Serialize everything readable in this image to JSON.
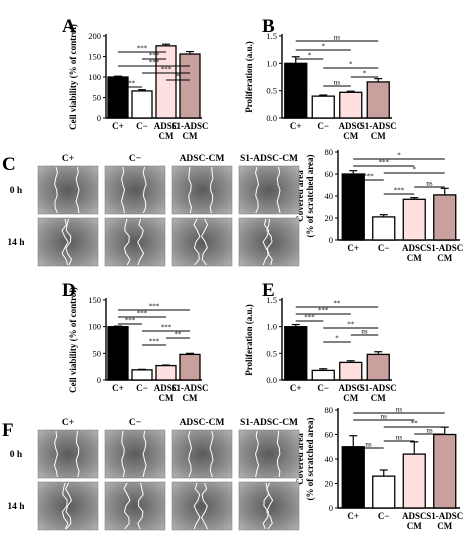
{
  "panel_labels": {
    "A": "A",
    "B": "B",
    "C": "C",
    "D": "D",
    "E": "E",
    "F": "F"
  },
  "scratch_grids": [
    {
      "panel": "C",
      "columns": [
        "C+",
        "C−",
        "ADSC-CM",
        "S1-ADSC-CM"
      ],
      "rows": [
        "0 h",
        "14 h"
      ]
    },
    {
      "panel": "F",
      "columns": [
        "C+",
        "C−",
        "ADSC-CM",
        "S1-ADSC-CM"
      ],
      "rows": [
        "0 h",
        "14 h"
      ]
    }
  ],
  "colors": {
    "C+": "#000000",
    "C-": "#ffffff",
    "ADSC CM": "#ffe0e0",
    "S1-ADSC CM": "#c8a09e"
  },
  "chart_data": [
    {
      "panel": "A",
      "type": "bar",
      "categories": [
        "C+",
        "C−",
        "ADSC CM",
        "S1-ADSC CM"
      ],
      "cat_lines": [
        [
          "C+"
        ],
        [
          "C−"
        ],
        [
          "ADSC",
          "CM"
        ],
        [
          "S1-ADSC",
          "CM"
        ]
      ],
      "values": [
        100,
        66,
        176,
        156
      ],
      "errors": [
        2,
        3,
        4,
        6
      ],
      "ylabel": "Cell viability (% of control)",
      "ylim": [
        0,
        200
      ],
      "yticks": [
        0,
        50,
        100,
        150,
        200
      ],
      "tick_labels": [
        "0",
        "50",
        "100",
        "150",
        "200"
      ],
      "comparisons": [
        {
          "a": 0,
          "b": 1,
          "label": "***"
        },
        {
          "a": 2,
          "b": 3,
          "label": "*"
        },
        {
          "a": 1,
          "b": 3,
          "label": "***"
        },
        {
          "a": 0,
          "b": 3,
          "label": "***"
        },
        {
          "a": 1,
          "b": 2,
          "label": "***"
        },
        {
          "a": 0,
          "b": 2,
          "label": "***"
        }
      ]
    },
    {
      "panel": "B",
      "type": "bar",
      "categories": [
        "C+",
        "C−",
        "ADSC CM",
        "S1-ADSC CM"
      ],
      "cat_lines": [
        [
          "C+"
        ],
        [
          "C−"
        ],
        [
          "ADSC",
          "CM"
        ],
        [
          "S1-ADSC",
          "CM"
        ]
      ],
      "values": [
        1.0,
        0.4,
        0.47,
        0.66
      ],
      "errors": [
        0.12,
        0.02,
        0.02,
        0.06
      ],
      "ylabel": "Proliferation (a.u.)",
      "ylim": [
        0,
        1.5
      ],
      "yticks": [
        0,
        0.5,
        1.0,
        1.5
      ],
      "tick_labels": [
        "0.0",
        "0.5",
        "1.0",
        "1.5"
      ],
      "comparisons": [
        {
          "a": 1,
          "b": 2,
          "label": "ns"
        },
        {
          "a": 2,
          "b": 3,
          "label": "*"
        },
        {
          "a": 1,
          "b": 3,
          "label": "*"
        },
        {
          "a": 0,
          "b": 1,
          "label": "*"
        },
        {
          "a": 0,
          "b": 2,
          "label": "*"
        },
        {
          "a": 0,
          "b": 3,
          "label": "ns"
        }
      ]
    },
    {
      "panel": "C",
      "type": "bar",
      "categories": [
        "C+",
        "C−",
        "ADSC CM",
        "S1-ADSC CM"
      ],
      "cat_lines": [
        [
          "C+"
        ],
        [
          "C−"
        ],
        [
          "ADSC",
          "CM"
        ],
        [
          "S1-ADSC",
          "CM"
        ]
      ],
      "values": [
        60,
        21,
        37,
        41
      ],
      "errors": [
        3,
        2,
        1.5,
        6
      ],
      "ylabel": "Covered area",
      "ylabel2": "(% of scratched area)",
      "ylim": [
        0,
        80
      ],
      "yticks": [
        0,
        20,
        40,
        60,
        80
      ],
      "tick_labels": [
        "0",
        "20",
        "40",
        "60",
        "80"
      ],
      "comparisons": [
        {
          "a": 1,
          "b": 2,
          "label": "***"
        },
        {
          "a": 2,
          "b": 3,
          "label": "ns"
        },
        {
          "a": 0,
          "b": 1,
          "label": "***"
        },
        {
          "a": 1,
          "b": 3,
          "label": "*"
        },
        {
          "a": 0,
          "b": 2,
          "label": "***"
        },
        {
          "a": 0,
          "b": 3,
          "label": "*"
        }
      ]
    },
    {
      "panel": "D",
      "type": "bar",
      "categories": [
        "C+",
        "C−",
        "ADSC CM",
        "S1-ADSC CM"
      ],
      "cat_lines": [
        [
          "C+"
        ],
        [
          "C−"
        ],
        [
          "ADSC",
          "CM"
        ],
        [
          "S1-ADSC",
          "CM"
        ]
      ],
      "values": [
        100,
        19,
        27,
        48
      ],
      "errors": [
        1,
        1,
        1,
        2
      ],
      "ylabel": "Cell viability (% of control)",
      "ylim": [
        0,
        150
      ],
      "yticks": [
        0,
        50,
        100,
        150
      ],
      "tick_labels": [
        "0",
        "50",
        "100",
        "150"
      ],
      "comparisons": [
        {
          "a": 1,
          "b": 2,
          "label": "***"
        },
        {
          "a": 2,
          "b": 3,
          "label": "**"
        },
        {
          "a": 1,
          "b": 3,
          "label": "***"
        },
        {
          "a": 0,
          "b": 1,
          "label": "***"
        },
        {
          "a": 0,
          "b": 2,
          "label": "***"
        },
        {
          "a": 0,
          "b": 3,
          "label": "***"
        }
      ]
    },
    {
      "panel": "E",
      "type": "bar",
      "categories": [
        "C+",
        "C−",
        "ADSC CM",
        "S1-ADSC CM"
      ],
      "cat_lines": [
        [
          "C+"
        ],
        [
          "C−"
        ],
        [
          "ADSC",
          "CM"
        ],
        [
          "S1-ADSC",
          "CM"
        ]
      ],
      "values": [
        1.0,
        0.18,
        0.33,
        0.48
      ],
      "errors": [
        0.04,
        0.03,
        0.03,
        0.05
      ],
      "ylabel": "Proliferation (a.u.)",
      "ylim": [
        0,
        1.5
      ],
      "yticks": [
        0,
        0.5,
        1.0,
        1.5
      ],
      "tick_labels": [
        "0.0",
        "0.5",
        "1.0",
        "1.5"
      ],
      "comparisons": [
        {
          "a": 1,
          "b": 2,
          "label": "*"
        },
        {
          "a": 2,
          "b": 3,
          "label": "ns"
        },
        {
          "a": 1,
          "b": 3,
          "label": "**"
        },
        {
          "a": 0,
          "b": 1,
          "label": "***"
        },
        {
          "a": 0,
          "b": 2,
          "label": "***"
        },
        {
          "a": 0,
          "b": 3,
          "label": "**"
        }
      ]
    },
    {
      "panel": "F",
      "type": "bar",
      "categories": [
        "C+",
        "C−",
        "ADSC CM",
        "S1-ADSC CM"
      ],
      "cat_lines": [
        [
          "C+"
        ],
        [
          "C−"
        ],
        [
          "ADSC",
          "CM"
        ],
        [
          "S1-ADSC",
          "CM"
        ]
      ],
      "values": [
        50,
        26,
        44,
        60
      ],
      "errors": [
        9,
        5,
        10,
        6
      ],
      "ylabel": "Covered area",
      "ylabel2": "(% of scratched area)",
      "ylim": [
        0,
        80
      ],
      "yticks": [
        0,
        20,
        40,
        60,
        80
      ],
      "tick_labels": [
        "0",
        "20",
        "40",
        "60",
        "80"
      ],
      "comparisons": [
        {
          "a": 0,
          "b": 1,
          "label": "ns"
        },
        {
          "a": 1,
          "b": 2,
          "label": "ns"
        },
        {
          "a": 2,
          "b": 3,
          "label": "ns"
        },
        {
          "a": 1,
          "b": 3,
          "label": "**"
        },
        {
          "a": 0,
          "b": 2,
          "label": "ns"
        },
        {
          "a": 0,
          "b": 3,
          "label": "ns"
        }
      ]
    }
  ]
}
